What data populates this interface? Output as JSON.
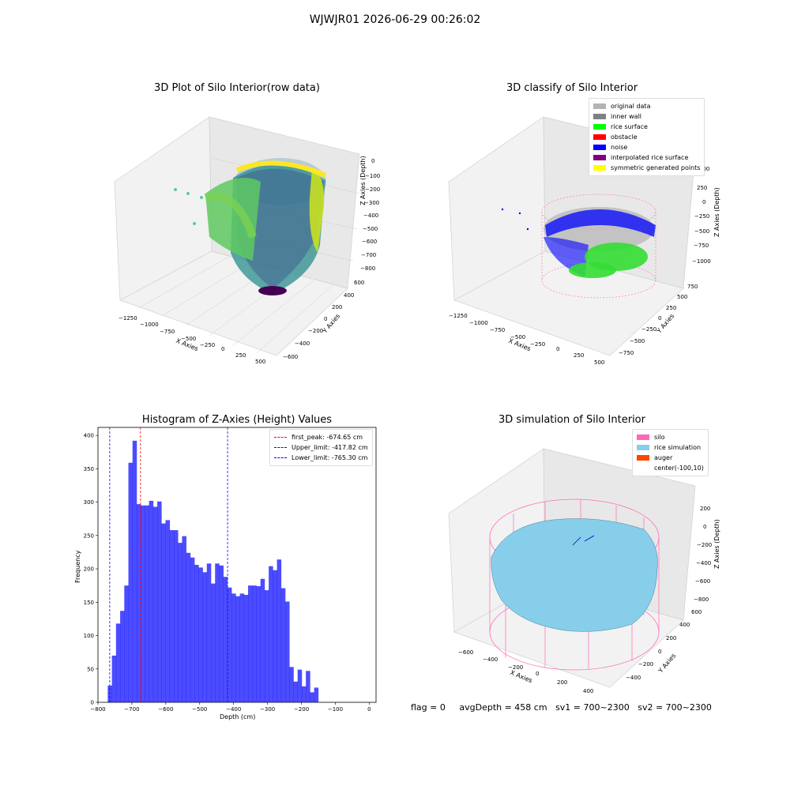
{
  "suptitle": "WJWJR01 2026-06-29 00:26:02",
  "panel1": {
    "title": "3D Plot of Silo Interior(row data)",
    "xlabel": "X Axies",
    "ylabel": "Y Axies",
    "zlabel": "Z Axies (Depth)",
    "xticks": [
      "−1250",
      "−1000",
      "−750",
      "−500",
      "−250",
      "0",
      "250",
      "500"
    ],
    "yticks": [
      "600",
      "400",
      "200",
      "0",
      "−200",
      "−400",
      "−600"
    ],
    "zticks": [
      "0",
      "−100",
      "−200",
      "−300",
      "−400",
      "−500",
      "−600",
      "−700",
      "−800"
    ]
  },
  "panel2": {
    "title": "3D classify of Silo Interior",
    "xlabel": "X Axies",
    "ylabel": "Y Axies",
    "zlabel": "Z Axies (Depth)",
    "xticks": [
      "−1250",
      "−1000",
      "−750",
      "−500",
      "−250",
      "0",
      "250",
      "500"
    ],
    "yticks": [
      "750",
      "500",
      "250",
      "0",
      "−250",
      "−500",
      "−750"
    ],
    "zticks": [
      "500",
      "250",
      "0",
      "−250",
      "−500",
      "−750",
      "−1000"
    ],
    "legend": [
      {
        "label": "original data",
        "color": "#b3b3b3"
      },
      {
        "label": "inner wall",
        "color": "#808080"
      },
      {
        "label": "rice surface",
        "color": "#00ff00"
      },
      {
        "label": "obstacle",
        "color": "#ff0000"
      },
      {
        "label": "noise",
        "color": "#0000ff"
      },
      {
        "label": "interpolated rice surface",
        "color": "#800080"
      },
      {
        "label": "symmetric generated points",
        "color": "#ffff00"
      }
    ]
  },
  "panel4": {
    "title": "3D simulation of Silo Interior",
    "xlabel": "X Axies",
    "ylabel": "Y Axies",
    "zlabel": "Z Axies (Depth)",
    "xticks": [
      "−600",
      "−400",
      "−200",
      "0",
      "200",
      "400"
    ],
    "yticks": [
      "600",
      "400",
      "200",
      "0",
      "−200",
      "−400"
    ],
    "zticks": [
      "200",
      "0",
      "−200",
      "−400",
      "−600",
      "−800"
    ],
    "legend": [
      {
        "label": "silo",
        "color": "#ff69b4"
      },
      {
        "label": "rice simulation",
        "color": "#87ceeb"
      },
      {
        "label": "auger",
        "color": "#ff4500"
      },
      {
        "label": "center(-100,10)",
        "color": ""
      }
    ]
  },
  "footer": {
    "flag": "flag = 0",
    "avg": "avgDepth = 458 cm",
    "sv1": "sv1 = 700~2300",
    "sv2": "sv2 = 700~2300"
  },
  "chart_data": [
    {
      "type": "bar",
      "title": "Histogram of Z-Axies (Height) Values",
      "xlabel": "Depth (cm)",
      "ylabel": "Frequency",
      "xlim": [
        -800,
        20
      ],
      "ylim": [
        0,
        412
      ],
      "bar_color": "#0000ff",
      "bin_width": 12.17,
      "bin_start": -771.1,
      "values": [
        25,
        70,
        118,
        137,
        175,
        359,
        392,
        297,
        295,
        295,
        302,
        293,
        301,
        268,
        273,
        258,
        258,
        239,
        249,
        224,
        217,
        206,
        202,
        195,
        208,
        178,
        208,
        205,
        188,
        172,
        163,
        159,
        163,
        161,
        175,
        175,
        174,
        185,
        168,
        204,
        198,
        214,
        171,
        151,
        53,
        31,
        49,
        24,
        47,
        15,
        22
      ],
      "xticks": [
        -800,
        -700,
        -600,
        -500,
        -400,
        -300,
        -200,
        -100,
        0
      ],
      "yticks": [
        0,
        50,
        100,
        150,
        200,
        250,
        300,
        350,
        400
      ],
      "vlines": [
        {
          "label": "first_peak: -674.65 cm",
          "x": -674.65,
          "color": "#ff0000"
        },
        {
          "label": "Upper_limit: -417.82 cm",
          "x": -417.82,
          "color": "#0000ff"
        },
        {
          "label": "Lower_limit: -765.30 cm",
          "x": -765.3,
          "color": "#0000ff"
        }
      ]
    }
  ]
}
